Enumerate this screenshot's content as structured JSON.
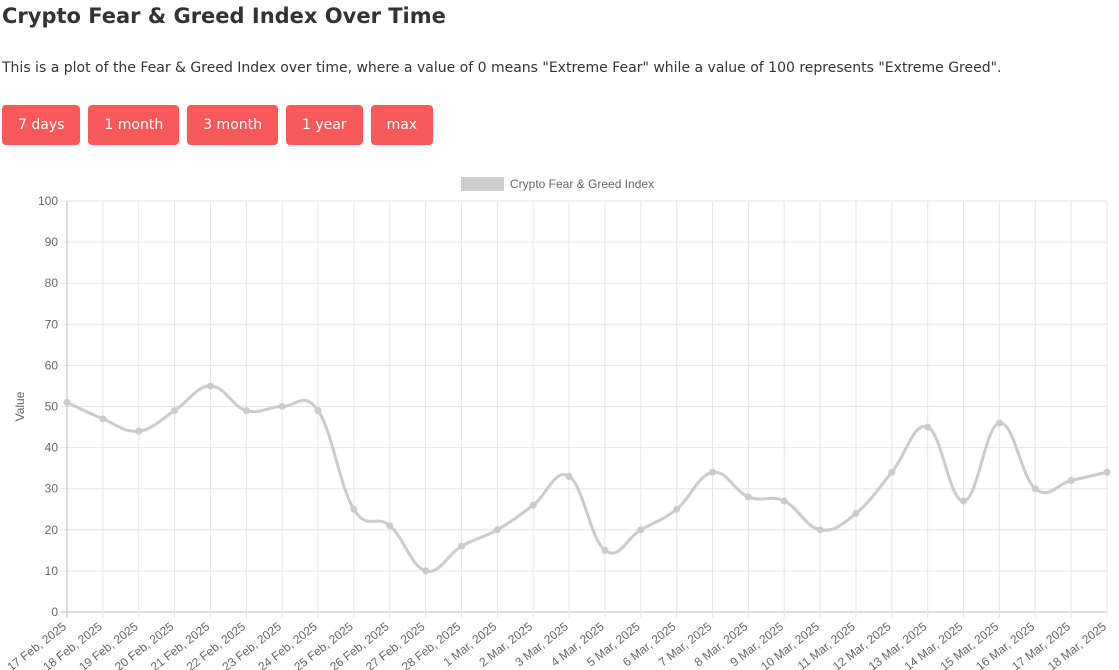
{
  "header": {
    "title": "Crypto Fear & Greed Index Over Time",
    "description": "This is a plot of the Fear & Greed Index over time, where a value of 0 means \"Extreme Fear\" while a value of 100 represents \"Extreme Greed\"."
  },
  "buttons": [
    "7 days",
    "1 month",
    "3 month",
    "1 year",
    "max"
  ],
  "chart_data": {
    "type": "line",
    "legend": "top",
    "ylabel": "Value",
    "categories": [
      "17 Feb, 2025",
      "18 Feb, 2025",
      "19 Feb, 2025",
      "20 Feb, 2025",
      "21 Feb, 2025",
      "22 Feb, 2025",
      "23 Feb, 2025",
      "24 Feb, 2025",
      "25 Feb, 2025",
      "26 Feb, 2025",
      "27 Feb, 2025",
      "28 Feb, 2025",
      "1 Mar, 2025",
      "2 Mar, 2025",
      "3 Mar, 2025",
      "4 Mar, 2025",
      "5 Mar, 2025",
      "6 Mar, 2025",
      "7 Mar, 2025",
      "8 Mar, 2025",
      "9 Mar, 2025",
      "10 Mar, 2025",
      "11 Mar, 2025",
      "12 Mar, 2025",
      "13 Mar, 2025",
      "14 Mar, 2025",
      "15 Mar, 2025",
      "16 Mar, 2025",
      "17 Mar, 2025",
      "18 Mar, 2025"
    ],
    "series": [
      {
        "name": "Crypto Fear & Greed Index",
        "color": "#cccccc",
        "values": [
          51,
          47,
          44,
          49,
          55,
          49,
          50,
          49,
          25,
          21,
          10,
          16,
          20,
          26,
          33,
          15,
          20,
          25,
          34,
          28,
          27,
          20,
          24,
          34,
          45,
          27,
          46,
          30,
          32,
          34
        ]
      }
    ],
    "ylim": [
      0,
      100
    ],
    "yticks": [
      0,
      10,
      20,
      30,
      40,
      50,
      60,
      70,
      80,
      90,
      100
    ],
    "grid": true
  }
}
